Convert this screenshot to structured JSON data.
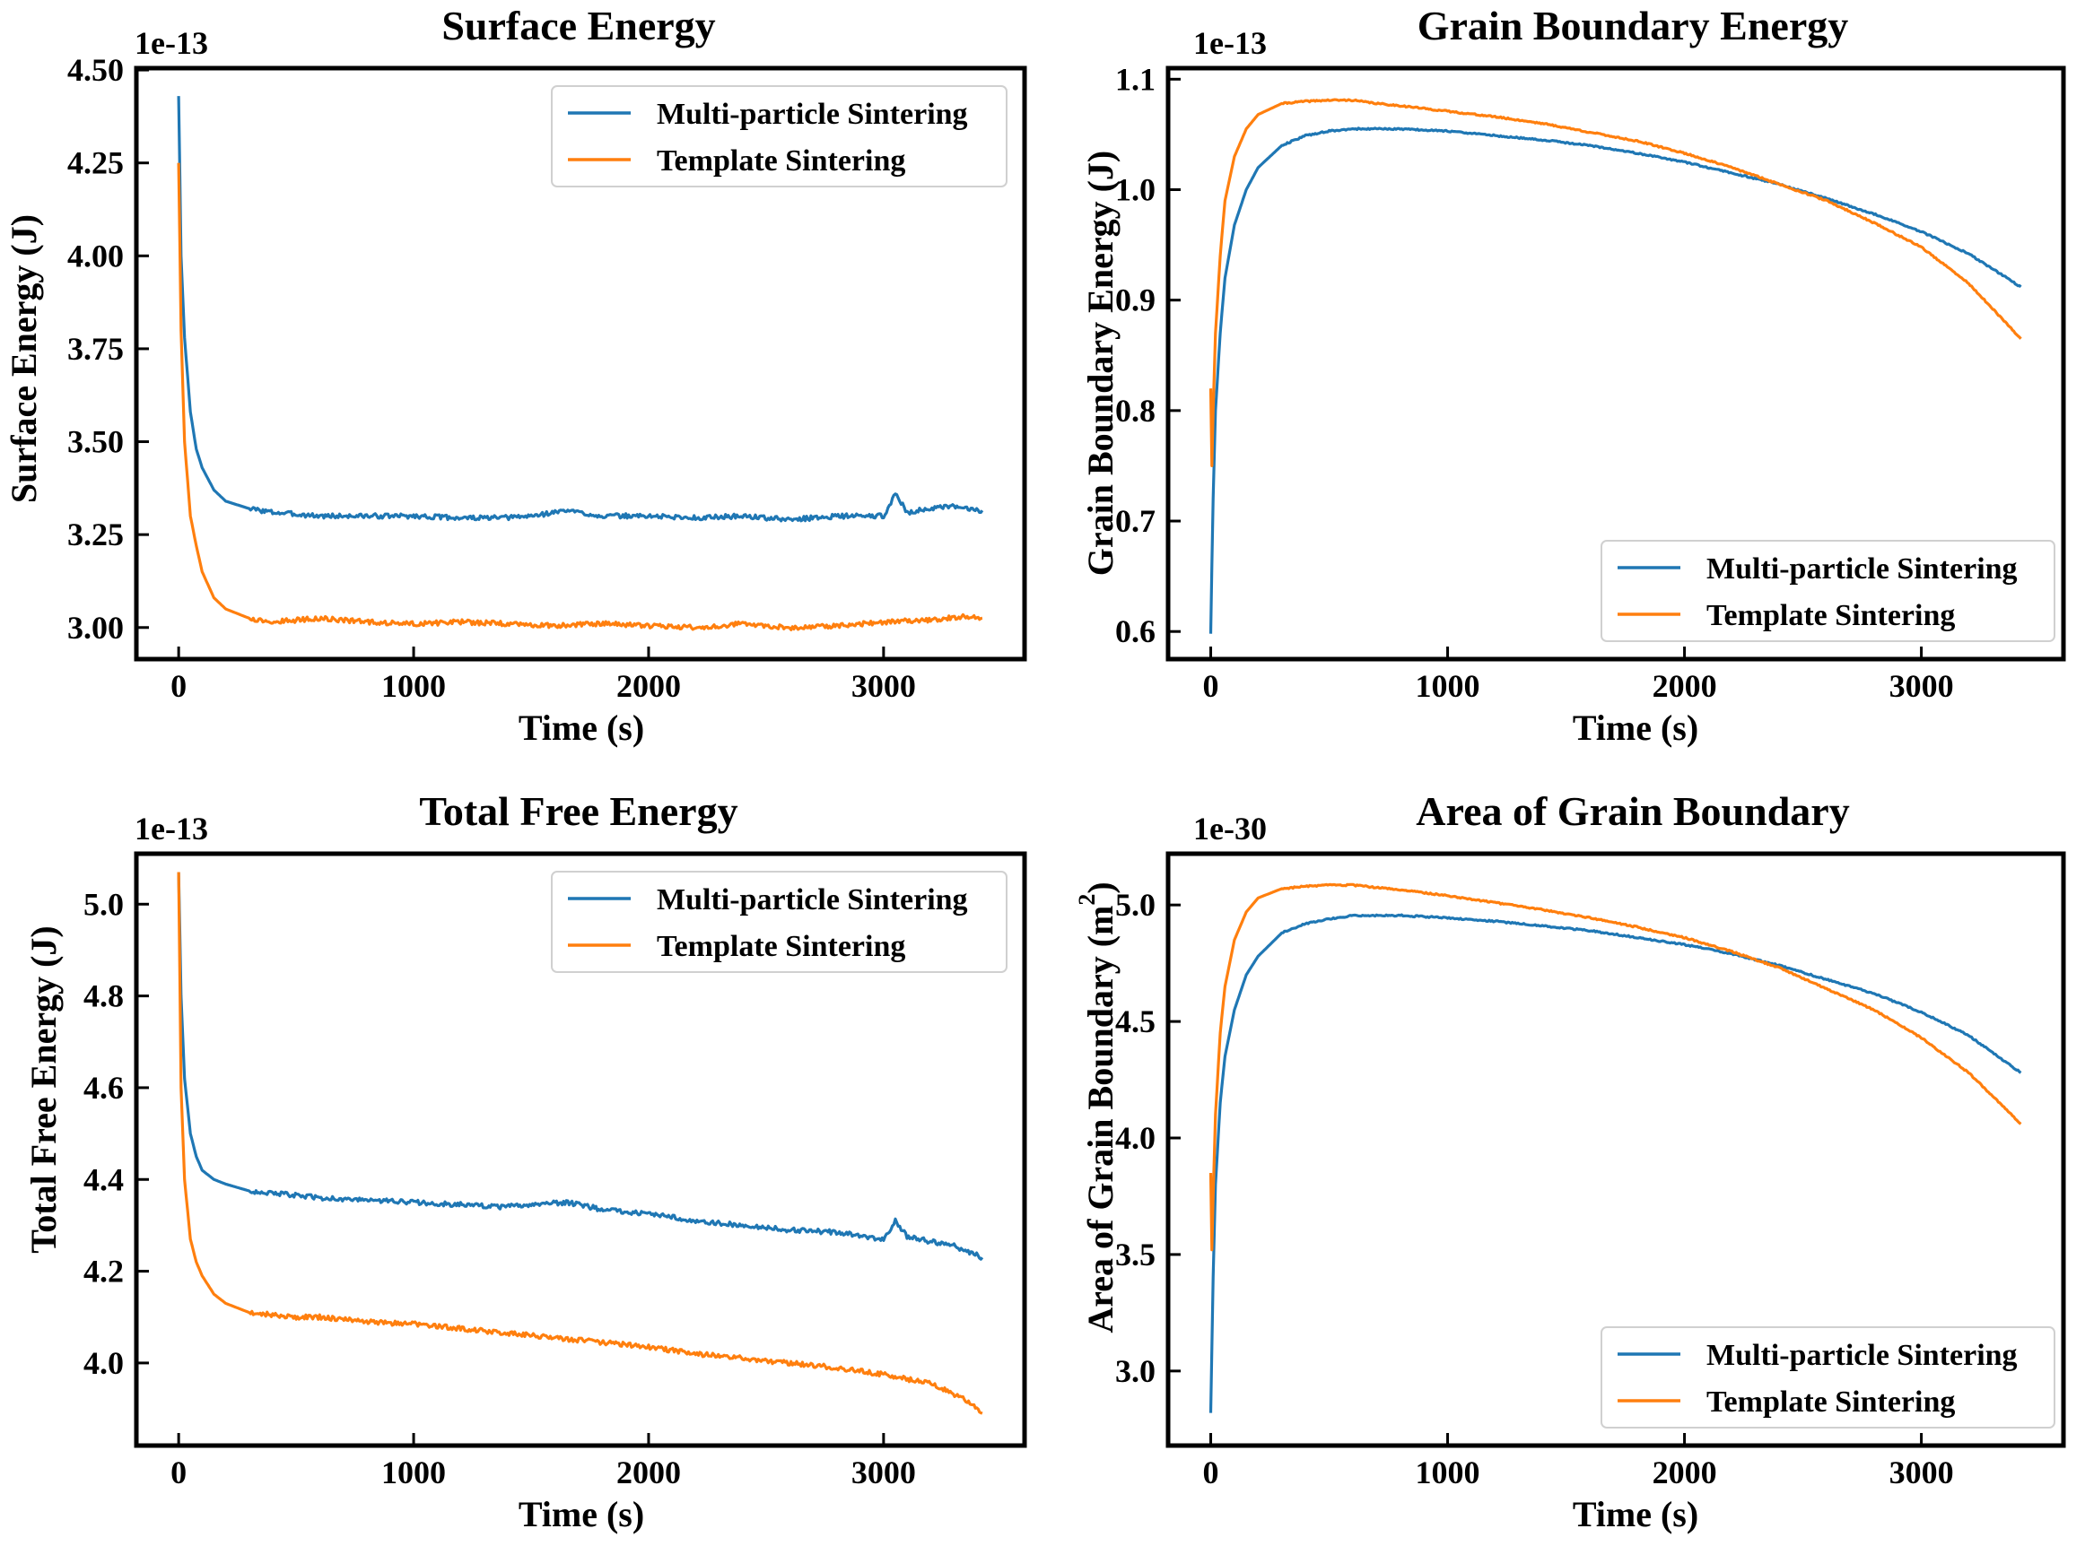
{
  "colors": {
    "series1": "#1f77b4",
    "series2": "#ff7f0e"
  },
  "chart_data": [
    {
      "type": "line",
      "title": "Surface Energy",
      "xlabel": "Time (s)",
      "ylabel": "Surface Energy (J)",
      "multiplier": "1e-13",
      "xlim": [
        -180,
        3600
      ],
      "ylim": [
        2.915,
        4.505
      ],
      "xticks": [
        0,
        1000,
        2000,
        3000
      ],
      "xtick_labels": [
        "0",
        "1000",
        "2000",
        "3000"
      ],
      "yticks": [
        3.0,
        3.25,
        3.5,
        3.75,
        4.0,
        4.25,
        4.5
      ],
      "ytick_labels": [
        "3.00",
        "3.25",
        "3.50",
        "3.75",
        "4.00",
        "4.25",
        "4.50"
      ],
      "legend": {
        "placement": "upper-right"
      },
      "series": [
        {
          "name": "Multi-particle Sintering",
          "color": "#1f77b4",
          "x": [
            0,
            10,
            25,
            50,
            75,
            100,
            150,
            200,
            300,
            400,
            600,
            800,
            1000,
            1200,
            1380,
            1500,
            1650,
            1800,
            2000,
            2200,
            2400,
            2600,
            2800,
            3000,
            3050,
            3100,
            3200,
            3300,
            3420
          ],
          "y": [
            4.43,
            4.0,
            3.78,
            3.58,
            3.48,
            3.43,
            3.37,
            3.34,
            3.32,
            3.31,
            3.3,
            3.3,
            3.3,
            3.295,
            3.295,
            3.3,
            3.315,
            3.3,
            3.3,
            3.295,
            3.3,
            3.29,
            3.3,
            3.3,
            3.36,
            3.31,
            3.32,
            3.325,
            3.315
          ]
        },
        {
          "name": "Template Sintering",
          "color": "#ff7f0e",
          "x": [
            0,
            10,
            25,
            50,
            75,
            100,
            150,
            200,
            300,
            400,
            500,
            600,
            800,
            1000,
            1200,
            1400,
            1600,
            1800,
            2000,
            2200,
            2400,
            2600,
            2800,
            3000,
            3200,
            3350,
            3420
          ],
          "y": [
            4.25,
            3.8,
            3.5,
            3.3,
            3.22,
            3.15,
            3.08,
            3.05,
            3.025,
            3.015,
            3.02,
            3.025,
            3.015,
            3.01,
            3.015,
            3.01,
            3.005,
            3.01,
            3.005,
            3.0,
            3.01,
            3.0,
            3.005,
            3.015,
            3.02,
            3.03,
            3.025
          ]
        }
      ]
    },
    {
      "type": "line",
      "title": "Grain Boundary Energy",
      "xlabel": "Time (s)",
      "ylabel": "Grain Boundary Energy (J)",
      "multiplier": "1e-13",
      "xlim": [
        -180,
        3600
      ],
      "ylim": [
        0.575,
        1.11
      ],
      "xticks": [
        0,
        1000,
        2000,
        3000
      ],
      "xtick_labels": [
        "0",
        "1000",
        "2000",
        "3000"
      ],
      "yticks": [
        0.6,
        0.7,
        0.8,
        0.9,
        1.0,
        1.1
      ],
      "ytick_labels": [
        "0.6",
        "0.7",
        "0.8",
        "0.9",
        "1.0",
        "1.1"
      ],
      "legend": {
        "placement": "lower-right"
      },
      "series": [
        {
          "name": "Multi-particle Sintering",
          "color": "#1f77b4",
          "x": [
            0,
            5,
            10,
            20,
            40,
            60,
            100,
            150,
            200,
            300,
            400,
            500,
            600,
            700,
            800,
            1000,
            1200,
            1400,
            1600,
            1800,
            2000,
            2200,
            2400,
            2600,
            2800,
            3000,
            3200,
            3420
          ],
          "y": [
            0.598,
            0.66,
            0.72,
            0.8,
            0.87,
            0.92,
            0.968,
            1.0,
            1.02,
            1.04,
            1.049,
            1.053,
            1.055,
            1.055,
            1.055,
            1.053,
            1.049,
            1.045,
            1.04,
            1.033,
            1.025,
            1.015,
            1.005,
            0.992,
            0.978,
            0.962,
            0.942,
            0.912
          ]
        },
        {
          "name": "Template Sintering",
          "color": "#ff7f0e",
          "x": [
            0,
            5,
            10,
            20,
            40,
            60,
            100,
            150,
            200,
            300,
            400,
            500,
            600,
            700,
            800,
            1000,
            1200,
            1400,
            1600,
            1800,
            2000,
            2200,
            2400,
            2600,
            2800,
            3000,
            3200,
            3420
          ],
          "y": [
            0.82,
            0.75,
            0.8,
            0.87,
            0.94,
            0.99,
            1.03,
            1.055,
            1.068,
            1.078,
            1.08,
            1.081,
            1.081,
            1.078,
            1.076,
            1.071,
            1.066,
            1.06,
            1.052,
            1.044,
            1.033,
            1.02,
            1.005,
            0.99,
            0.97,
            0.948,
            0.915,
            0.865
          ]
        }
      ]
    },
    {
      "type": "line",
      "title": "Total Free Energy",
      "xlabel": "Time (s)",
      "ylabel": "Total Free Energy (J)",
      "multiplier": "1e-13",
      "xlim": [
        -180,
        3600
      ],
      "ylim": [
        3.82,
        5.11
      ],
      "xticks": [
        0,
        1000,
        2000,
        3000
      ],
      "xtick_labels": [
        "0",
        "1000",
        "2000",
        "3000"
      ],
      "yticks": [
        4.0,
        4.2,
        4.4,
        4.6,
        4.8,
        5.0
      ],
      "ytick_labels": [
        "4.0",
        "4.2",
        "4.4",
        "4.6",
        "4.8",
        "5.0"
      ],
      "legend": {
        "placement": "upper-right"
      },
      "series": [
        {
          "name": "Multi-particle Sintering",
          "color": "#1f77b4",
          "x": [
            0,
            10,
            25,
            50,
            75,
            100,
            150,
            200,
            300,
            400,
            600,
            800,
            1000,
            1200,
            1380,
            1500,
            1650,
            1800,
            2000,
            2200,
            2400,
            2600,
            2800,
            3000,
            3050,
            3100,
            3200,
            3300,
            3420
          ],
          "y": [
            5.07,
            4.8,
            4.62,
            4.5,
            4.45,
            4.42,
            4.4,
            4.39,
            4.375,
            4.37,
            4.36,
            4.355,
            4.35,
            4.345,
            4.34,
            4.345,
            4.35,
            4.335,
            4.325,
            4.31,
            4.3,
            4.29,
            4.285,
            4.27,
            4.31,
            4.275,
            4.265,
            4.255,
            4.23
          ]
        },
        {
          "name": "Template Sintering",
          "color": "#ff7f0e",
          "x": [
            0,
            10,
            25,
            50,
            75,
            100,
            150,
            200,
            300,
            400,
            500,
            600,
            800,
            1000,
            1200,
            1400,
            1600,
            1800,
            2000,
            2200,
            2400,
            2600,
            2800,
            3000,
            3200,
            3350,
            3420
          ],
          "y": [
            5.07,
            4.6,
            4.4,
            4.27,
            4.22,
            4.19,
            4.15,
            4.13,
            4.11,
            4.105,
            4.1,
            4.1,
            4.09,
            4.085,
            4.075,
            4.065,
            4.055,
            4.045,
            4.035,
            4.02,
            4.01,
            4.0,
            3.99,
            3.975,
            3.955,
            3.92,
            3.89
          ]
        }
      ]
    },
    {
      "type": "line",
      "title": "Area of Grain Boundary",
      "xlabel": "Time (s)",
      "ylabel": "Area of Grain Boundary (m",
      "ylabel_sup": "2",
      "ylabel_end": ")",
      "multiplier": "1e-30",
      "xlim": [
        -180,
        3600
      ],
      "ylim": [
        2.68,
        5.22
      ],
      "xticks": [
        0,
        1000,
        2000,
        3000
      ],
      "xtick_labels": [
        "0",
        "1000",
        "2000",
        "3000"
      ],
      "yticks": [
        3.0,
        3.5,
        4.0,
        4.5,
        5.0
      ],
      "ytick_labels": [
        "3.0",
        "3.5",
        "4.0",
        "4.5",
        "5.0"
      ],
      "legend": {
        "placement": "lower-right"
      },
      "series": [
        {
          "name": "Multi-particle Sintering",
          "color": "#1f77b4",
          "x": [
            0,
            5,
            10,
            20,
            40,
            60,
            100,
            150,
            200,
            300,
            400,
            500,
            600,
            700,
            800,
            1000,
            1200,
            1400,
            1600,
            1800,
            2000,
            2200,
            2400,
            2600,
            2800,
            3000,
            3200,
            3420
          ],
          "y": [
            2.82,
            3.1,
            3.4,
            3.8,
            4.15,
            4.35,
            4.55,
            4.7,
            4.78,
            4.88,
            4.92,
            4.94,
            4.955,
            4.955,
            4.955,
            4.945,
            4.93,
            4.91,
            4.89,
            4.86,
            4.83,
            4.79,
            4.74,
            4.68,
            4.62,
            4.54,
            4.44,
            4.28
          ]
        },
        {
          "name": "Template Sintering",
          "color": "#ff7f0e",
          "x": [
            0,
            5,
            10,
            20,
            40,
            60,
            100,
            150,
            200,
            300,
            400,
            500,
            600,
            700,
            800,
            1000,
            1200,
            1400,
            1600,
            1800,
            2000,
            2200,
            2400,
            2600,
            2800,
            3000,
            3200,
            3420
          ],
          "y": [
            3.85,
            3.52,
            3.75,
            4.1,
            4.45,
            4.65,
            4.85,
            4.97,
            5.03,
            5.07,
            5.08,
            5.085,
            5.085,
            5.075,
            5.065,
            5.04,
            5.01,
            4.98,
            4.945,
            4.905,
            4.86,
            4.8,
            4.73,
            4.64,
            4.55,
            4.43,
            4.28,
            4.06
          ]
        }
      ]
    }
  ]
}
